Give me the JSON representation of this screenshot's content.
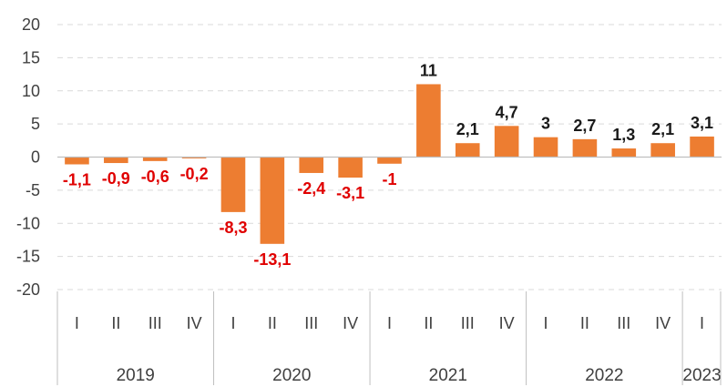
{
  "chart_data": {
    "type": "bar",
    "title": "",
    "xlabel": "",
    "ylabel": "",
    "ylim": [
      -20,
      20
    ],
    "yticks": [
      20,
      15,
      10,
      5,
      0,
      -5,
      -10,
      -15,
      -20
    ],
    "grid": true,
    "legend": "none",
    "categories": [
      "I",
      "II",
      "III",
      "IV",
      "I",
      "II",
      "III",
      "IV",
      "I",
      "II",
      "III",
      "IV",
      "I",
      "II",
      "III",
      "IV",
      "I"
    ],
    "groups": [
      {
        "label": "2019",
        "count": 4
      },
      {
        "label": "2020",
        "count": 4
      },
      {
        "label": "2021",
        "count": 4
      },
      {
        "label": "2022",
        "count": 4
      },
      {
        "label": "2023",
        "count": 1
      }
    ],
    "values": [
      -1.1,
      -0.9,
      -0.6,
      -0.2,
      -8.3,
      -13.1,
      -2.4,
      -3.1,
      -1,
      11,
      2.1,
      4.7,
      3,
      2.7,
      1.3,
      2.1,
      3.1
    ],
    "data_labels": [
      "-1,1",
      "-0,9",
      "-0,6",
      "-0,2",
      "-8,3",
      "-13,1",
      "-2,4",
      "-3,1",
      "-1",
      "11",
      "2,1",
      "4,7",
      "3",
      "2,7",
      "1,3",
      "2,1",
      "3,1"
    ],
    "colors": {
      "bar": "#ED7D31",
      "negative_label": "#E00000",
      "positive_label": "#1a1a1a",
      "grid": "#d9d9d9",
      "axis": "#bfbfbf"
    }
  }
}
